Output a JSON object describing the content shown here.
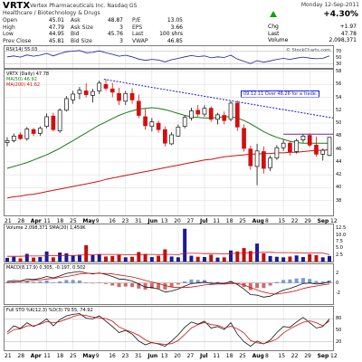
{
  "header": {
    "symbol": "VRTX",
    "company": "Vertex Pharmaceuticals Inc.  Nasdaq GS",
    "sector": "Healthcare / Biotechnology & Drugs",
    "date": "Monday 12-Sep-2011",
    "change_pct": "+4.30%",
    "brand": "© StockCharts.com",
    "left_quotes": [
      {
        "k": "Open",
        "v": "45.01"
      },
      {
        "k": "High",
        "v": "47.79"
      },
      {
        "k": "Low",
        "v": "44.95"
      },
      {
        "k": "Prev Close",
        "v": "45.81"
      }
    ],
    "mid_quotes": [
      {
        "k": "Ask",
        "v": "48.87",
        "k2": "P/E",
        "v2": "13.05"
      },
      {
        "k": "Ask Size",
        "v": "3",
        "k2": "EPS",
        "v2": "3.66"
      },
      {
        "k": "Bid",
        "v": "45.76",
        "k2": "Last",
        "v2": "100 shrs"
      },
      {
        "k": "Bid Size",
        "v": "3",
        "k2": "VWAP",
        "v2": "46.85"
      }
    ],
    "right_quotes": [
      {
        "k": "Chg",
        "v": "+1.97"
      },
      {
        "k": "Last",
        "v": "47.78"
      },
      {
        "k": "Volume",
        "v": "2,098,371"
      }
    ]
  },
  "panels": {
    "rsi_title": "RSI(14) 55.03",
    "price_title_sym": "VRTX (Daily) 47.78",
    "price_title_ma50": "MA(50) 46.92",
    "price_title_ma200": "MA(200) 41.62",
    "volume_title": "Volume 2,098,371  SMA(20) 1,459K",
    "macd_title": "MACD(8,17,9) 0.305, -0.197, 0.502",
    "sto_title": "Full STO %K(12,3) %D(3) 79.55, 74.92"
  },
  "annotation": "09.12.11 Over 48.26 for a trade.",
  "x_labels": [
    {
      "t": "21",
      "b": false
    },
    {
      "t": "28",
      "b": false
    },
    {
      "t": "Apr",
      "b": true
    },
    {
      "t": "11",
      "b": false
    },
    {
      "t": "18",
      "b": false
    },
    {
      "t": "25",
      "b": false
    },
    {
      "t": "May",
      "b": true
    },
    {
      "t": "9",
      "b": false
    },
    {
      "t": "16",
      "b": false
    },
    {
      "t": "23",
      "b": false
    },
    {
      "t": "31",
      "b": false
    },
    {
      "t": "Jun",
      "b": true
    },
    {
      "t": "13",
      "b": false
    },
    {
      "t": "20",
      "b": false
    },
    {
      "t": "27",
      "b": false
    },
    {
      "t": "Jul",
      "b": true
    },
    {
      "t": "11",
      "b": false
    },
    {
      "t": "18",
      "b": false
    },
    {
      "t": "25",
      "b": false
    },
    {
      "t": "Aug",
      "b": true
    },
    {
      "t": "8",
      "b": false
    },
    {
      "t": "15",
      "b": false
    },
    {
      "t": "22",
      "b": false
    },
    {
      "t": "29",
      "b": false
    },
    {
      "t": "Sep",
      "b": true
    },
    {
      "t": "12",
      "b": false
    }
  ],
  "colors": {
    "up": "#111111",
    "down": "#d01010",
    "ma50": "#1a7a1a",
    "ma200": "#d01010",
    "trend": "#1a1ad6",
    "resist": "#6a2aa0",
    "vol_up": "#1a1a9a",
    "vol_down": "#c01010",
    "arrow": "#11a011"
  },
  "chart_data": [
    {
      "type": "candlestick",
      "title": "VRTX (Daily) 47.78",
      "ylim": [
        36,
        58
      ],
      "y_ticks": [
        38,
        40,
        42,
        44,
        46,
        48,
        50,
        52,
        54,
        56,
        58
      ],
      "x": [
        "Mar-21",
        "Mar-24",
        "Mar-28",
        "Mar-31",
        "Apr-04",
        "Apr-07",
        "Apr-11",
        "Apr-14",
        "Apr-18",
        "Apr-21",
        "Apr-25",
        "Apr-28",
        "May-02",
        "May-05",
        "May-09",
        "May-12",
        "May-16",
        "May-19",
        "May-23",
        "May-26",
        "May-31",
        "Jun-03",
        "Jun-07",
        "Jun-10",
        "Jun-14",
        "Jun-17",
        "Jun-21",
        "Jun-24",
        "Jun-28",
        "Jul-01",
        "Jul-06",
        "Jul-09",
        "Jul-13",
        "Jul-18",
        "Jul-21",
        "Jul-25",
        "Jul-28",
        "Aug-01",
        "Aug-04",
        "Aug-08",
        "Aug-11",
        "Aug-15",
        "Aug-18",
        "Aug-22",
        "Aug-25",
        "Aug-29",
        "Sep-01",
        "Sep-06",
        "Sep-09",
        "Sep-12"
      ],
      "ohlc": [
        [
          47.0,
          47.8,
          46.4,
          47.3
        ],
        [
          47.3,
          48.4,
          47.0,
          48.0
        ],
        [
          48.2,
          48.6,
          47.4,
          47.6
        ],
        [
          47.6,
          49.4,
          47.3,
          49.1
        ],
        [
          49.0,
          49.3,
          48.0,
          48.4
        ],
        [
          48.4,
          49.5,
          48.0,
          49.2
        ],
        [
          49.5,
          51.5,
          49.2,
          51.0
        ],
        [
          51.1,
          51.6,
          48.7,
          49.0
        ],
        [
          48.8,
          52.3,
          48.5,
          52.0
        ],
        [
          52.0,
          54.2,
          51.8,
          53.8
        ],
        [
          53.6,
          55.0,
          53.0,
          54.5
        ],
        [
          54.6,
          55.6,
          53.7,
          55.1
        ],
        [
          55.0,
          56.2,
          54.0,
          54.4
        ],
        [
          54.3,
          55.3,
          53.2,
          54.9
        ],
        [
          55.0,
          56.6,
          54.5,
          56.2
        ],
        [
          56.0,
          56.8,
          55.0,
          55.4
        ],
        [
          55.3,
          56.2,
          54.0,
          54.8
        ],
        [
          54.6,
          55.5,
          52.8,
          53.5
        ],
        [
          53.4,
          55.0,
          52.8,
          54.6
        ],
        [
          54.6,
          55.4,
          53.0,
          53.6
        ],
        [
          53.4,
          54.4,
          50.8,
          51.2
        ],
        [
          51.0,
          52.2,
          49.0,
          49.6
        ],
        [
          49.5,
          50.8,
          48.7,
          50.2
        ],
        [
          50.0,
          50.4,
          48.5,
          49.0
        ],
        [
          49.0,
          49.5,
          46.4,
          46.9
        ],
        [
          46.8,
          48.6,
          46.6,
          48.2
        ],
        [
          48.0,
          49.8,
          47.9,
          49.4
        ],
        [
          49.5,
          51.2,
          49.2,
          50.9
        ],
        [
          50.8,
          52.4,
          50.4,
          51.9
        ],
        [
          52.0,
          52.8,
          51.0,
          51.4
        ],
        [
          51.4,
          52.8,
          51.0,
          52.3
        ],
        [
          52.3,
          52.6,
          50.2,
          50.6
        ],
        [
          50.6,
          51.6,
          49.8,
          51.3
        ],
        [
          51.2,
          51.8,
          49.8,
          50.4
        ],
        [
          50.6,
          53.4,
          50.3,
          53.1
        ],
        [
          53.1,
          53.5,
          48.8,
          49.4
        ],
        [
          49.2,
          49.8,
          45.6,
          46.1
        ],
        [
          46.0,
          46.5,
          42.8,
          43.4
        ],
        [
          43.3,
          46.8,
          40.4,
          45.7
        ],
        [
          45.6,
          46.4,
          42.2,
          43.0
        ],
        [
          43.1,
          45.0,
          42.6,
          44.6
        ],
        [
          44.6,
          46.6,
          44.3,
          46.2
        ],
        [
          46.2,
          47.4,
          45.7,
          46.9
        ],
        [
          46.9,
          47.2,
          45.0,
          45.5
        ],
        [
          45.6,
          47.6,
          45.3,
          47.3
        ],
        [
          47.4,
          48.3,
          47.0,
          48.0
        ],
        [
          48.1,
          48.4,
          46.3,
          46.6
        ],
        [
          46.6,
          47.9,
          44.8,
          45.2
        ],
        [
          45.2,
          46.1,
          44.2,
          45.8
        ],
        [
          45.0,
          47.8,
          44.9,
          47.8
        ]
      ],
      "ma50": [
        43.0,
        43.3,
        43.6,
        43.9,
        44.3,
        44.7,
        45.1,
        45.6,
        46.1,
        46.7,
        47.3,
        47.9,
        48.5,
        49.1,
        49.7,
        50.2,
        50.7,
        51.2,
        51.6,
        51.9,
        52.2,
        52.3,
        52.4,
        52.3,
        52.1,
        51.8,
        51.5,
        51.2,
        51.0,
        50.9,
        50.8,
        50.8,
        50.9,
        51.0,
        51.0,
        50.8,
        50.4,
        49.9,
        49.3,
        48.7,
        48.2,
        47.8,
        47.5,
        47.2,
        47.0,
        46.9,
        46.9,
        46.9,
        46.9,
        46.9
      ],
      "ma200": [
        38.4,
        38.6,
        38.7,
        38.9,
        39.0,
        39.2,
        39.4,
        39.6,
        39.8,
        40.0,
        40.2,
        40.4,
        40.6,
        40.8,
        41.0,
        41.3,
        41.5,
        41.7,
        41.9,
        42.1,
        42.3,
        42.5,
        42.7,
        42.9,
        43.1,
        43.3,
        43.5,
        43.7,
        43.9,
        44.1,
        44.3,
        44.4,
        44.6,
        44.8,
        44.9,
        45.0,
        45.1,
        45.2,
        45.2,
        45.3,
        45.3,
        45.4,
        45.4,
        45.5,
        45.5,
        45.6,
        45.7,
        45.8,
        45.8,
        45.9
      ],
      "trendline": {
        "from": [
          "Apr-29",
          56.8
        ],
        "to": [
          "Sep-12",
          50.8
        ]
      },
      "resistance": {
        "from": [
          "Aug-18",
          48.3
        ],
        "to": [
          "Sep-12",
          48.3
        ]
      }
    },
    {
      "type": "line",
      "title": "RSI(14) 55.03",
      "ylim": [
        20,
        80
      ],
      "y_ticks": [
        30,
        50,
        70
      ],
      "values": [
        52,
        55,
        51,
        58,
        54,
        57,
        63,
        55,
        62,
        68,
        70,
        72,
        65,
        66,
        71,
        65,
        60,
        54,
        57,
        52,
        45,
        41,
        44,
        42,
        36,
        43,
        47,
        52,
        56,
        53,
        55,
        49,
        52,
        50,
        57,
        45,
        38,
        31,
        40,
        35,
        39,
        44,
        47,
        44,
        48,
        51,
        48,
        46,
        47,
        55
      ]
    },
    {
      "type": "bar",
      "title": "Volume 2,098,371  SMA(20) 1,459K",
      "unit": "M shares",
      "ylim": [
        0,
        13
      ],
      "y_ticks": [
        2.5,
        5.0,
        7.5,
        10.0,
        12.5
      ],
      "values": [
        1.4,
        1.8,
        1.2,
        2.9,
        1.5,
        1.7,
        3.8,
        1.6,
        3.4,
        3.1,
        2.2,
        2.6,
        6.2,
        2.4,
        2.8,
        1.9,
        2.1,
        2.5,
        1.6,
        1.8,
        3.6,
        2.9,
        1.7,
        2.2,
        4.6,
        1.9,
        1.6,
        12.4,
        2.2,
        1.8,
        1.7,
        2.6,
        1.5,
        1.6,
        4.2,
        3.8,
        5.1,
        4.0,
        6.8,
        3.1,
        2.1,
        1.8,
        1.6,
        1.9,
        2.3,
        1.7,
        2.8,
        2.4,
        1.6,
        2.1
      ],
      "sma20": [
        2.0,
        2.0,
        2.0,
        2.1,
        2.1,
        2.1,
        2.2,
        2.2,
        2.3,
        2.3,
        2.3,
        2.4,
        2.6,
        2.6,
        2.7,
        2.7,
        2.7,
        2.7,
        2.6,
        2.6,
        2.6,
        2.7,
        2.7,
        2.6,
        2.7,
        2.7,
        2.6,
        3.1,
        3.1,
        3.1,
        3.0,
        3.0,
        3.0,
        2.9,
        3.0,
        3.1,
        3.2,
        3.3,
        3.4,
        3.5,
        3.5,
        3.4,
        3.4,
        3.4,
        3.3,
        3.3,
        3.3,
        3.3,
        3.2,
        2.6
      ]
    },
    {
      "type": "line",
      "title": "MACD(8,17,9) 0.305, -0.197, 0.502",
      "ylim": [
        -4,
        3
      ],
      "y_ticks": [
        -2,
        0,
        2
      ],
      "macd": [
        0.3,
        0.5,
        0.4,
        0.8,
        0.7,
        0.9,
        1.3,
        1.0,
        1.4,
        1.9,
        2.1,
        2.3,
        2.0,
        1.8,
        2.0,
        1.7,
        1.3,
        0.8,
        0.7,
        0.4,
        -0.2,
        -0.8,
        -0.9,
        -1.2,
        -1.8,
        -1.6,
        -1.2,
        -0.6,
        -0.1,
        0.0,
        0.2,
        -0.1,
        0.0,
        -0.1,
        0.3,
        -0.3,
        -1.2,
        -2.3,
        -2.4,
        -2.8,
        -2.6,
        -2.0,
        -1.4,
        -1.1,
        -0.6,
        -0.1,
        0.0,
        -0.2,
        -0.1,
        0.3
      ],
      "signal": [
        0.1,
        0.2,
        0.3,
        0.4,
        0.5,
        0.6,
        0.8,
        0.9,
        1.1,
        1.3,
        1.5,
        1.8,
        1.9,
        1.9,
        1.9,
        1.9,
        1.8,
        1.6,
        1.4,
        1.2,
        0.9,
        0.5,
        0.2,
        -0.1,
        -0.5,
        -0.8,
        -0.9,
        -0.9,
        -0.8,
        -0.6,
        -0.4,
        -0.3,
        -0.2,
        -0.2,
        -0.1,
        -0.1,
        -0.4,
        -0.9,
        -1.4,
        -1.8,
        -2.1,
        -2.2,
        -2.0,
        -1.8,
        -1.5,
        -1.1,
        -0.8,
        -0.6,
        -0.4,
        -0.2
      ],
      "histogram": [
        0.2,
        0.3,
        0.1,
        0.4,
        0.2,
        0.3,
        0.5,
        0.1,
        0.3,
        0.6,
        0.6,
        0.5,
        0.1,
        -0.1,
        0.1,
        -0.2,
        -0.5,
        -0.8,
        -0.7,
        -0.8,
        -1.1,
        -1.3,
        -1.1,
        -1.1,
        -1.3,
        -0.8,
        -0.3,
        0.3,
        0.7,
        0.6,
        0.6,
        0.2,
        0.2,
        0.1,
        0.4,
        -0.2,
        -0.8,
        -1.4,
        -1.0,
        -1.0,
        -0.5,
        0.2,
        0.6,
        0.7,
        0.9,
        1.0,
        0.8,
        0.4,
        0.3,
        0.5
      ]
    },
    {
      "type": "line",
      "title": "Full STO %K(12,3) %D(3) 79.55, 74.92",
      "ylim": [
        0,
        100
      ],
      "y_ticks": [
        20,
        50,
        80
      ],
      "k": [
        45,
        62,
        55,
        70,
        60,
        68,
        80,
        62,
        78,
        88,
        92,
        94,
        82,
        80,
        88,
        74,
        60,
        44,
        50,
        40,
        22,
        12,
        18,
        14,
        8,
        22,
        38,
        58,
        72,
        66,
        74,
        56,
        60,
        52,
        70,
        40,
        20,
        8,
        22,
        14,
        24,
        44,
        60,
        58,
        72,
        84,
        70,
        56,
        60,
        80
      ],
      "d": [
        40,
        52,
        54,
        62,
        62,
        66,
        73,
        70,
        73,
        79,
        86,
        91,
        89,
        85,
        83,
        81,
        74,
        59,
        51,
        45,
        37,
        25,
        17,
        15,
        13,
        15,
        23,
        39,
        56,
        65,
        71,
        65,
        63,
        56,
        61,
        54,
        43,
        23,
        17,
        15,
        20,
        27,
        43,
        54,
        63,
        71,
        75,
        70,
        62,
        75
      ]
    }
  ]
}
